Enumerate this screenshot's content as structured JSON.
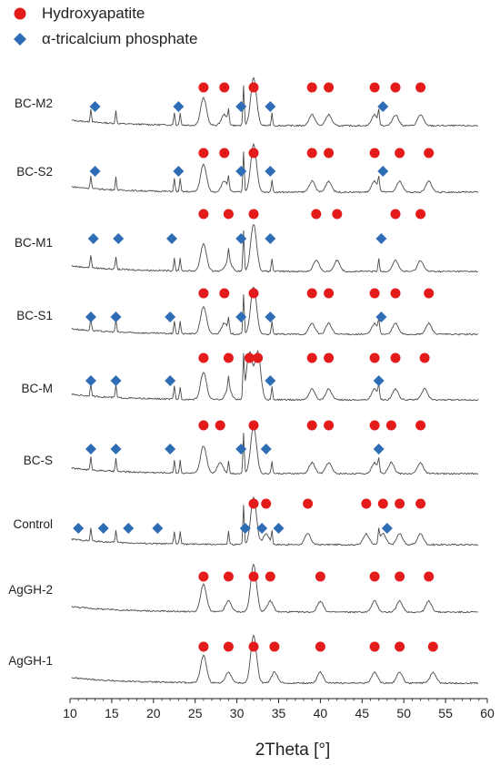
{
  "chart_data": {
    "type": "line",
    "xlabel": "2Theta [°]",
    "xlim": [
      10,
      60
    ],
    "xticks": [
      10,
      15,
      20,
      25,
      30,
      35,
      40,
      45,
      50,
      55,
      60
    ],
    "legend": [
      {
        "marker": "circle",
        "label": "Hydroxyapatite",
        "color": "#e31b1b"
      },
      {
        "marker": "diamond",
        "label": "α-tricalcium phosphate",
        "color": "#2e6db5"
      }
    ],
    "series": [
      {
        "name": "BC-M2",
        "hap": [
          26,
          28.5,
          32,
          39,
          41,
          46.5,
          49,
          52
        ],
        "tcp": [
          13,
          23,
          30.5,
          34,
          47.5
        ]
      },
      {
        "name": "BC-S2",
        "hap": [
          26,
          28.5,
          32,
          39,
          41,
          46.5,
          49.5,
          53
        ],
        "tcp": [
          13,
          23,
          30.5,
          34,
          47.5
        ]
      },
      {
        "name": "BC-M1",
        "hap": [
          26,
          29,
          32,
          39.5,
          42,
          49,
          52
        ],
        "tcp": [
          12.8,
          15.8,
          22.2,
          30.5,
          34,
          47.3
        ]
      },
      {
        "name": "BC-S1",
        "hap": [
          26,
          28.5,
          32,
          39,
          41,
          46.5,
          49,
          53
        ],
        "tcp": [
          12.5,
          15.5,
          22,
          30.5,
          34,
          47.3
        ]
      },
      {
        "name": "BC-M",
        "hap": [
          26,
          29,
          31.5,
          32.5,
          39,
          41,
          46.5,
          49,
          52.5
        ],
        "tcp": [
          12.5,
          15.5,
          22,
          34,
          47
        ]
      },
      {
        "name": "BC-S",
        "hap": [
          26,
          28,
          32,
          39,
          41,
          46.5,
          48.5,
          52
        ],
        "tcp": [
          12.5,
          15.5,
          22,
          30.5,
          33.5,
          47
        ]
      },
      {
        "name": "Control",
        "hap": [
          32,
          33.5,
          38.5,
          45.5,
          47.5,
          49.5,
          52
        ],
        "tcp": [
          11,
          14,
          17,
          20.5,
          31,
          33,
          35,
          48
        ]
      },
      {
        "name": "AgGH-2",
        "hap": [
          26,
          29,
          32,
          34,
          40,
          46.5,
          49.5,
          53
        ],
        "tcp": []
      },
      {
        "name": "AgGH-1",
        "hap": [
          26,
          29,
          32,
          34.5,
          40,
          46.5,
          49.5,
          53.5
        ],
        "tcp": []
      }
    ]
  }
}
